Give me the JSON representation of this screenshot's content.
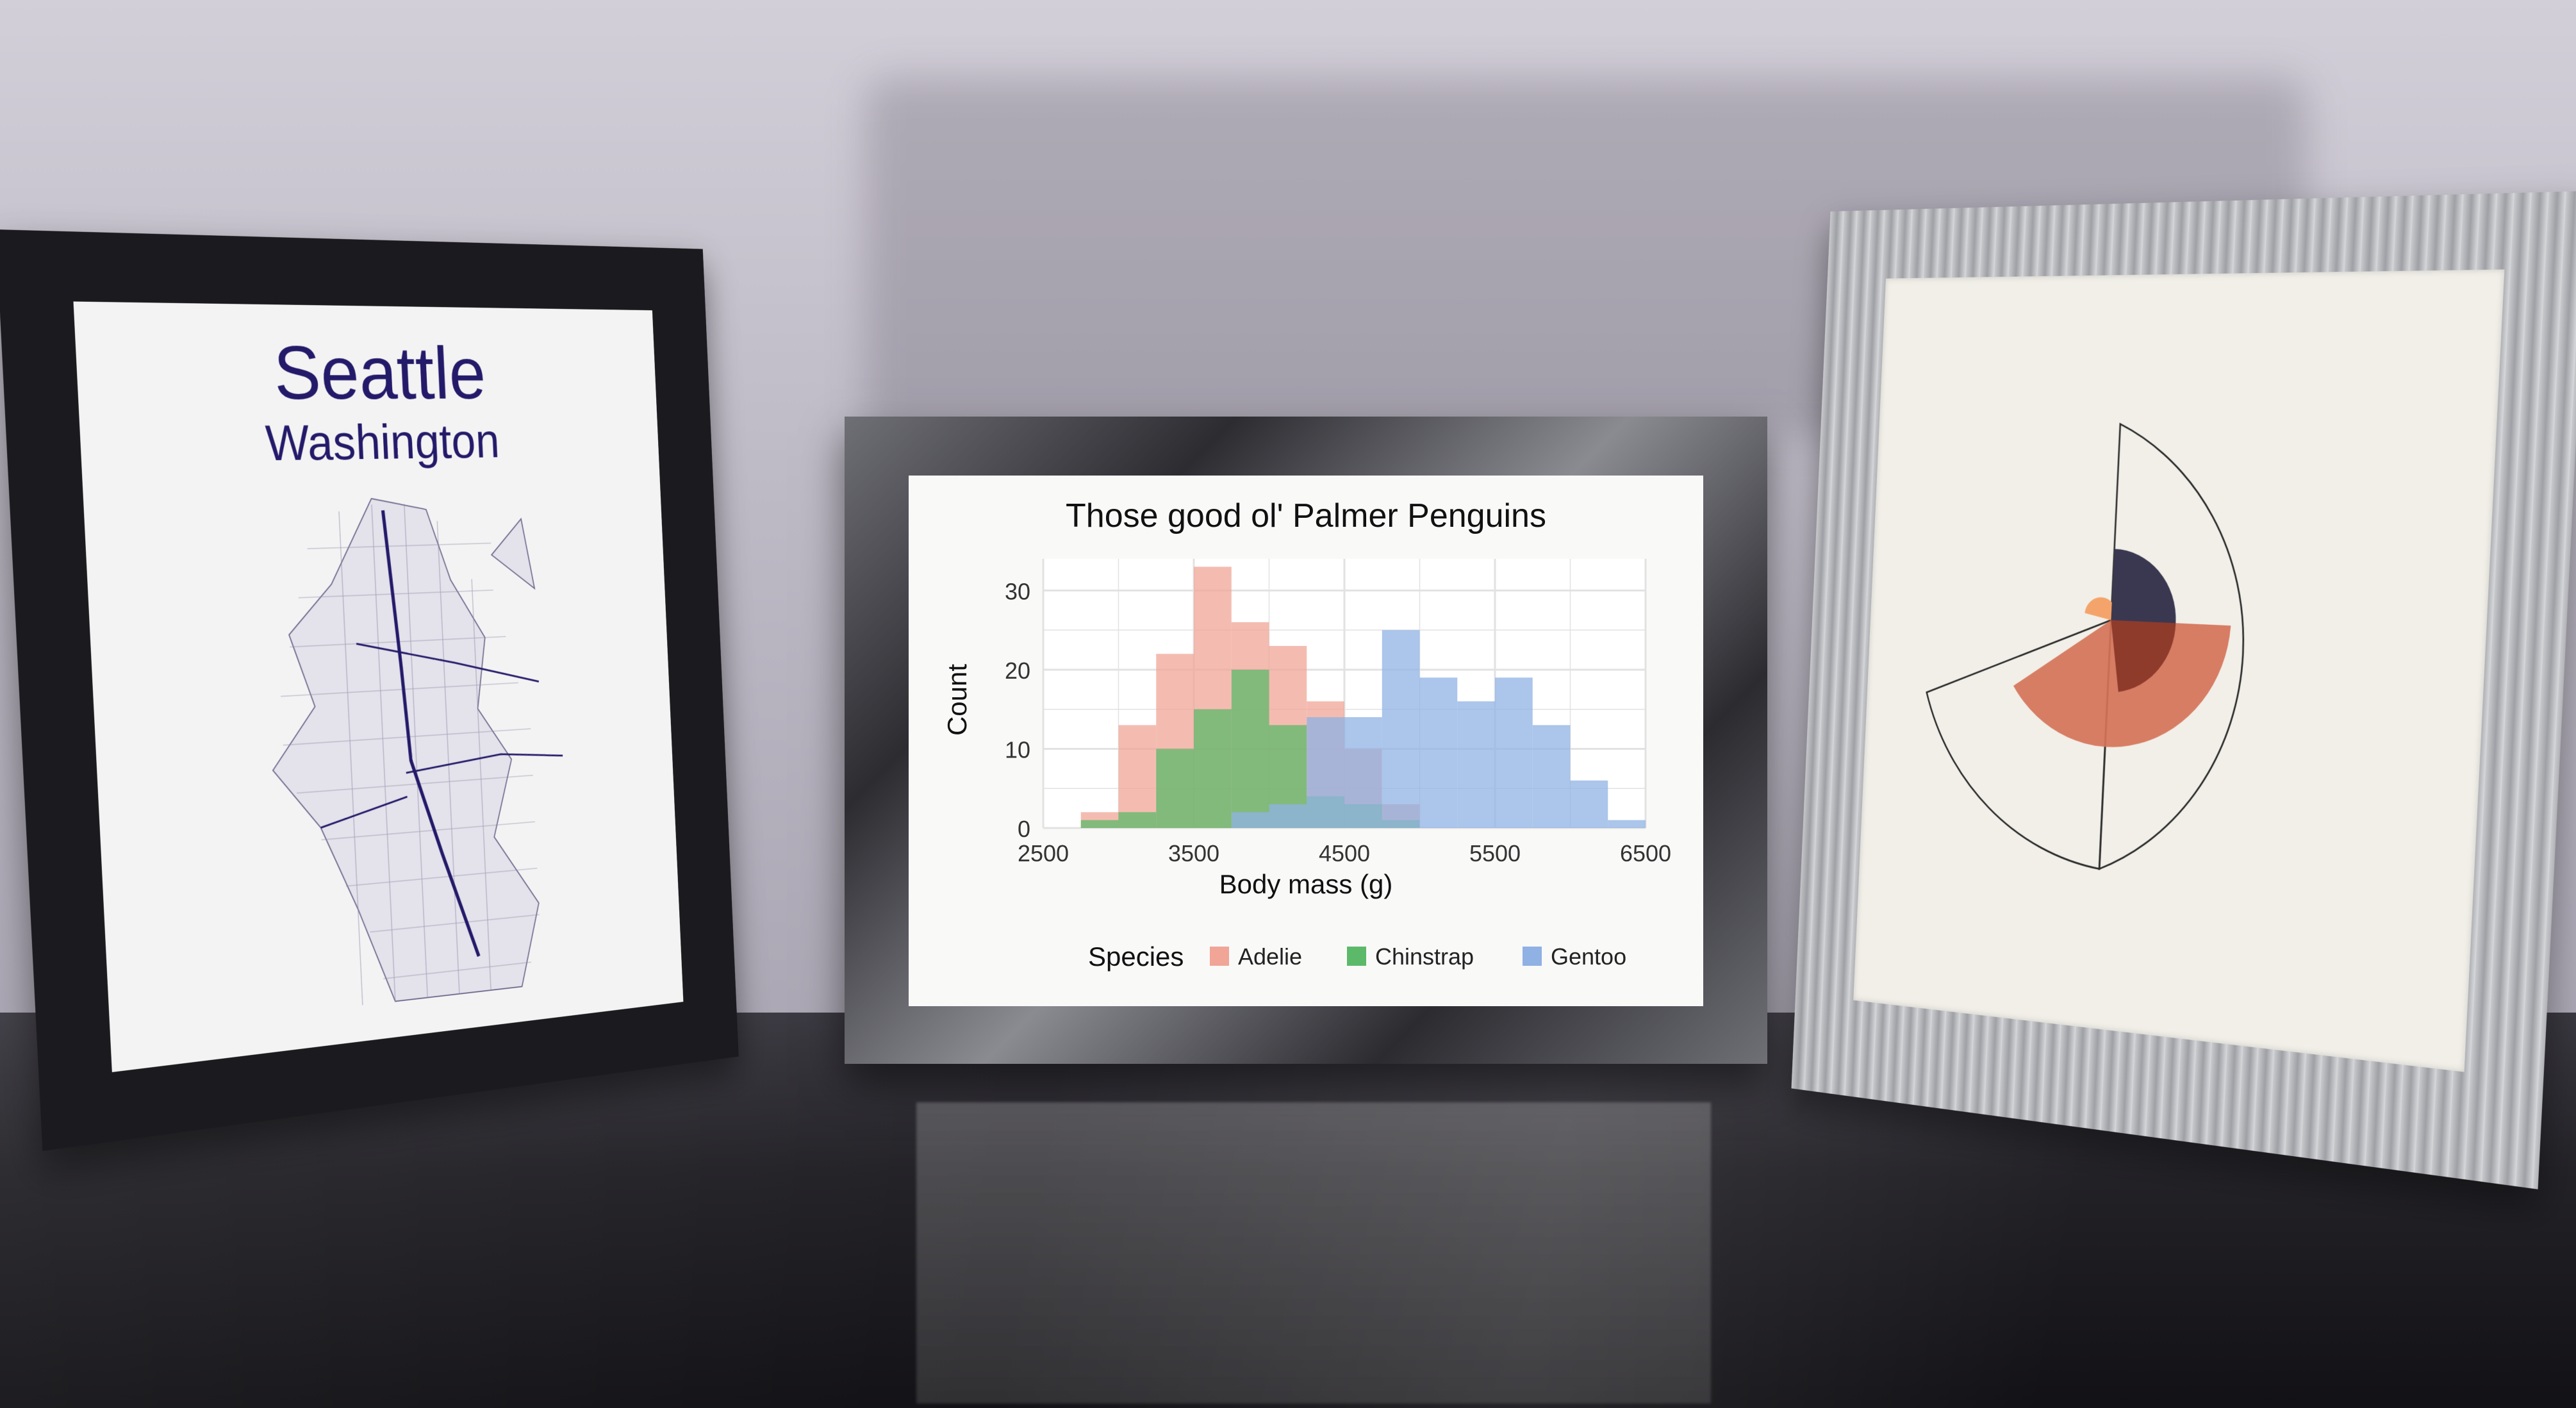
{
  "left_print": {
    "title": "Seattle",
    "subtitle": "Washington"
  },
  "penguin_chart": {
    "title": "Those good ol' Palmer Penguins",
    "xlabel": "Body mass (g)",
    "ylabel": "Count",
    "x_ticks": [
      "2500",
      "3500",
      "4500",
      "5500",
      "6500"
    ],
    "y_ticks": [
      "0",
      "10",
      "20",
      "30"
    ],
    "legend_title": "Species",
    "legend_items": [
      {
        "label": "Adelie",
        "color": "#f0a597"
      },
      {
        "label": "Chinstrap",
        "color": "#5cb96a"
      },
      {
        "label": "Gentoo",
        "color": "#8fb1e4"
      }
    ]
  },
  "chart_data": {
    "type": "bar",
    "title": "Those good ol' Palmer Penguins",
    "xlabel": "Body mass (g)",
    "ylabel": "Count",
    "xlim": [
      2500,
      6500
    ],
    "ylim": [
      0,
      34
    ],
    "bin_width": 250,
    "bin_start": 2750,
    "series": [
      {
        "name": "Adelie",
        "color": "#f0a597",
        "values": [
          2,
          13,
          22,
          33,
          26,
          23,
          16,
          10,
          3,
          0,
          0,
          0,
          0,
          0
        ]
      },
      {
        "name": "Chinstrap",
        "color": "#5cb96a",
        "values": [
          1,
          2,
          10,
          15,
          20,
          13,
          4,
          3,
          1,
          0,
          0,
          0,
          0,
          0
        ]
      },
      {
        "name": "Gentoo",
        "color": "#8fb1e4",
        "values": [
          0,
          0,
          0,
          0,
          2,
          3,
          14,
          14,
          25,
          19,
          16,
          19,
          13,
          6,
          1
        ]
      }
    ],
    "grid": true,
    "legend_position": "bottom"
  },
  "right_print": {
    "colors": {
      "outline": "#2a2a2a",
      "navy": "#3a3850",
      "rust": "#d57358",
      "dark_rust": "#8e3b2c",
      "orange": "#f4a46a"
    }
  }
}
